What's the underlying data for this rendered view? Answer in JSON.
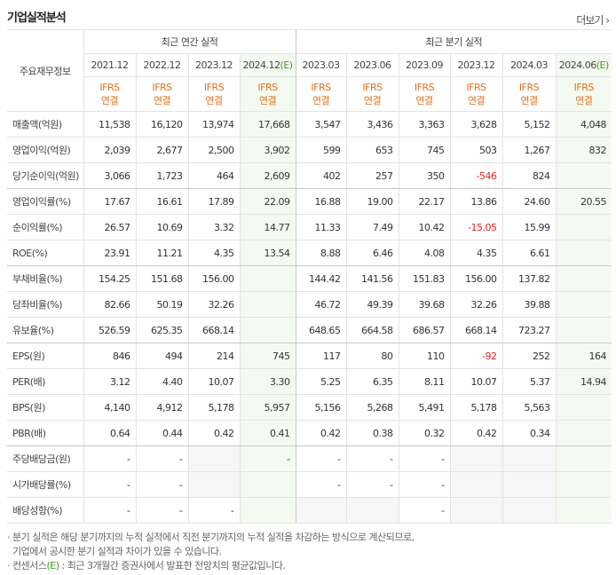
{
  "header": {
    "title": "기업실적분석",
    "more": "더보기"
  },
  "table": {
    "corner": "주요재무정보",
    "groups": [
      "최근 연간 실적",
      "최근 분기 실적"
    ],
    "periods": [
      {
        "date": "2021.12"
      },
      {
        "date": "2022.12"
      },
      {
        "date": "2023.12"
      },
      {
        "date": "2024.12",
        "e": "(E)"
      },
      {
        "date": "2023.03"
      },
      {
        "date": "2023.06"
      },
      {
        "date": "2023.09"
      },
      {
        "date": "2023.12"
      },
      {
        "date": "2024.03"
      },
      {
        "date": "2024.06",
        "e": "(E)"
      }
    ],
    "standard": [
      "IFRS",
      "연결"
    ],
    "rows": [
      {
        "label": "매출액(억원)",
        "cells": [
          "11,538",
          "16,120",
          "13,974",
          "17,668",
          "3,547",
          "3,436",
          "3,363",
          "3,628",
          "5,152",
          "4,048"
        ]
      },
      {
        "label": "영업이익(억원)",
        "cells": [
          "2,039",
          "2,677",
          "2,500",
          "3,902",
          "599",
          "653",
          "745",
          "503",
          "1,267",
          "832"
        ]
      },
      {
        "label": "당기순이익(억원)",
        "cells": [
          "3,066",
          "1,723",
          "464",
          "2,609",
          "402",
          "257",
          "350",
          "-546",
          "824",
          null
        ]
      },
      {
        "label": "영업이익률(%)",
        "cells": [
          "17.67",
          "16.61",
          "17.89",
          "22.09",
          "16.88",
          "19.00",
          "22.17",
          "13.86",
          "24.60",
          "20.55"
        ]
      },
      {
        "label": "순이익률(%)",
        "cells": [
          "26.57",
          "10.69",
          "3.32",
          "14.77",
          "11.33",
          "7.49",
          "10.42",
          "-15.05",
          "15.99",
          null
        ]
      },
      {
        "label": "ROE(%)",
        "cells": [
          "23.91",
          "11.21",
          "4.35",
          "13.54",
          "8.88",
          "6.46",
          "4.08",
          "4.35",
          "6.61",
          null
        ]
      },
      {
        "label": "부채비율(%)",
        "cells": [
          "154.25",
          "151.68",
          "156.00",
          null,
          "144.42",
          "141.56",
          "151.83",
          "156.00",
          "137.82",
          null
        ]
      },
      {
        "label": "당좌비율(%)",
        "cells": [
          "82.66",
          "50.19",
          "32.26",
          null,
          "46.72",
          "49.39",
          "39.68",
          "32.26",
          "39.88",
          null
        ]
      },
      {
        "label": "유보율(%)",
        "cells": [
          "526.59",
          "625.35",
          "668.14",
          null,
          "648.65",
          "664.58",
          "686.57",
          "668.14",
          "723.27",
          null
        ]
      },
      {
        "label": "EPS(원)",
        "cells": [
          "846",
          "494",
          "214",
          "745",
          "117",
          "80",
          "110",
          "-92",
          "252",
          "164"
        ]
      },
      {
        "label": "PER(배)",
        "cells": [
          "3.12",
          "4.40",
          "10.07",
          "3.30",
          "5.25",
          "6.35",
          "8.11",
          "10.07",
          "5.37",
          "14.94"
        ]
      },
      {
        "label": "BPS(원)",
        "cells": [
          "4,140",
          "4,912",
          "5,178",
          "5,957",
          "5,156",
          "5,268",
          "5,491",
          "5,178",
          "5,563",
          null
        ]
      },
      {
        "label": "PBR(배)",
        "cells": [
          "0.64",
          "0.44",
          "0.42",
          "0.41",
          "0.42",
          "0.38",
          "0.32",
          "0.42",
          "0.34",
          null
        ]
      },
      {
        "label": "주당배당금(원)",
        "cells": [
          "-",
          "-",
          null,
          "-",
          "-",
          "-",
          "-",
          null,
          null,
          null
        ]
      },
      {
        "label": "시가배당률(%)",
        "cells": [
          "-",
          "-",
          null,
          null,
          "-",
          "-",
          "-",
          null,
          null,
          null
        ]
      },
      {
        "label": "배당성향(%)",
        "cells": [
          "-",
          "-",
          "-",
          null,
          null,
          null,
          "-",
          null,
          null,
          null
        ]
      }
    ]
  },
  "notes": [
    {
      "text": "분기 실적은 해당 분기까지의 누적 실적에서 직전 분기까지의 누적 실적을 차감하는 방식으로 계산되므로,"
    },
    {
      "text": "기업에서 공시한 분기 실적과 차이가 있을 수 있습니다."
    },
    {
      "pre": "컨센서스",
      "e": "(E)",
      "post": " : 최근 3개월간 증권사에서 발표한 전망치의 평균값입니다."
    }
  ]
}
